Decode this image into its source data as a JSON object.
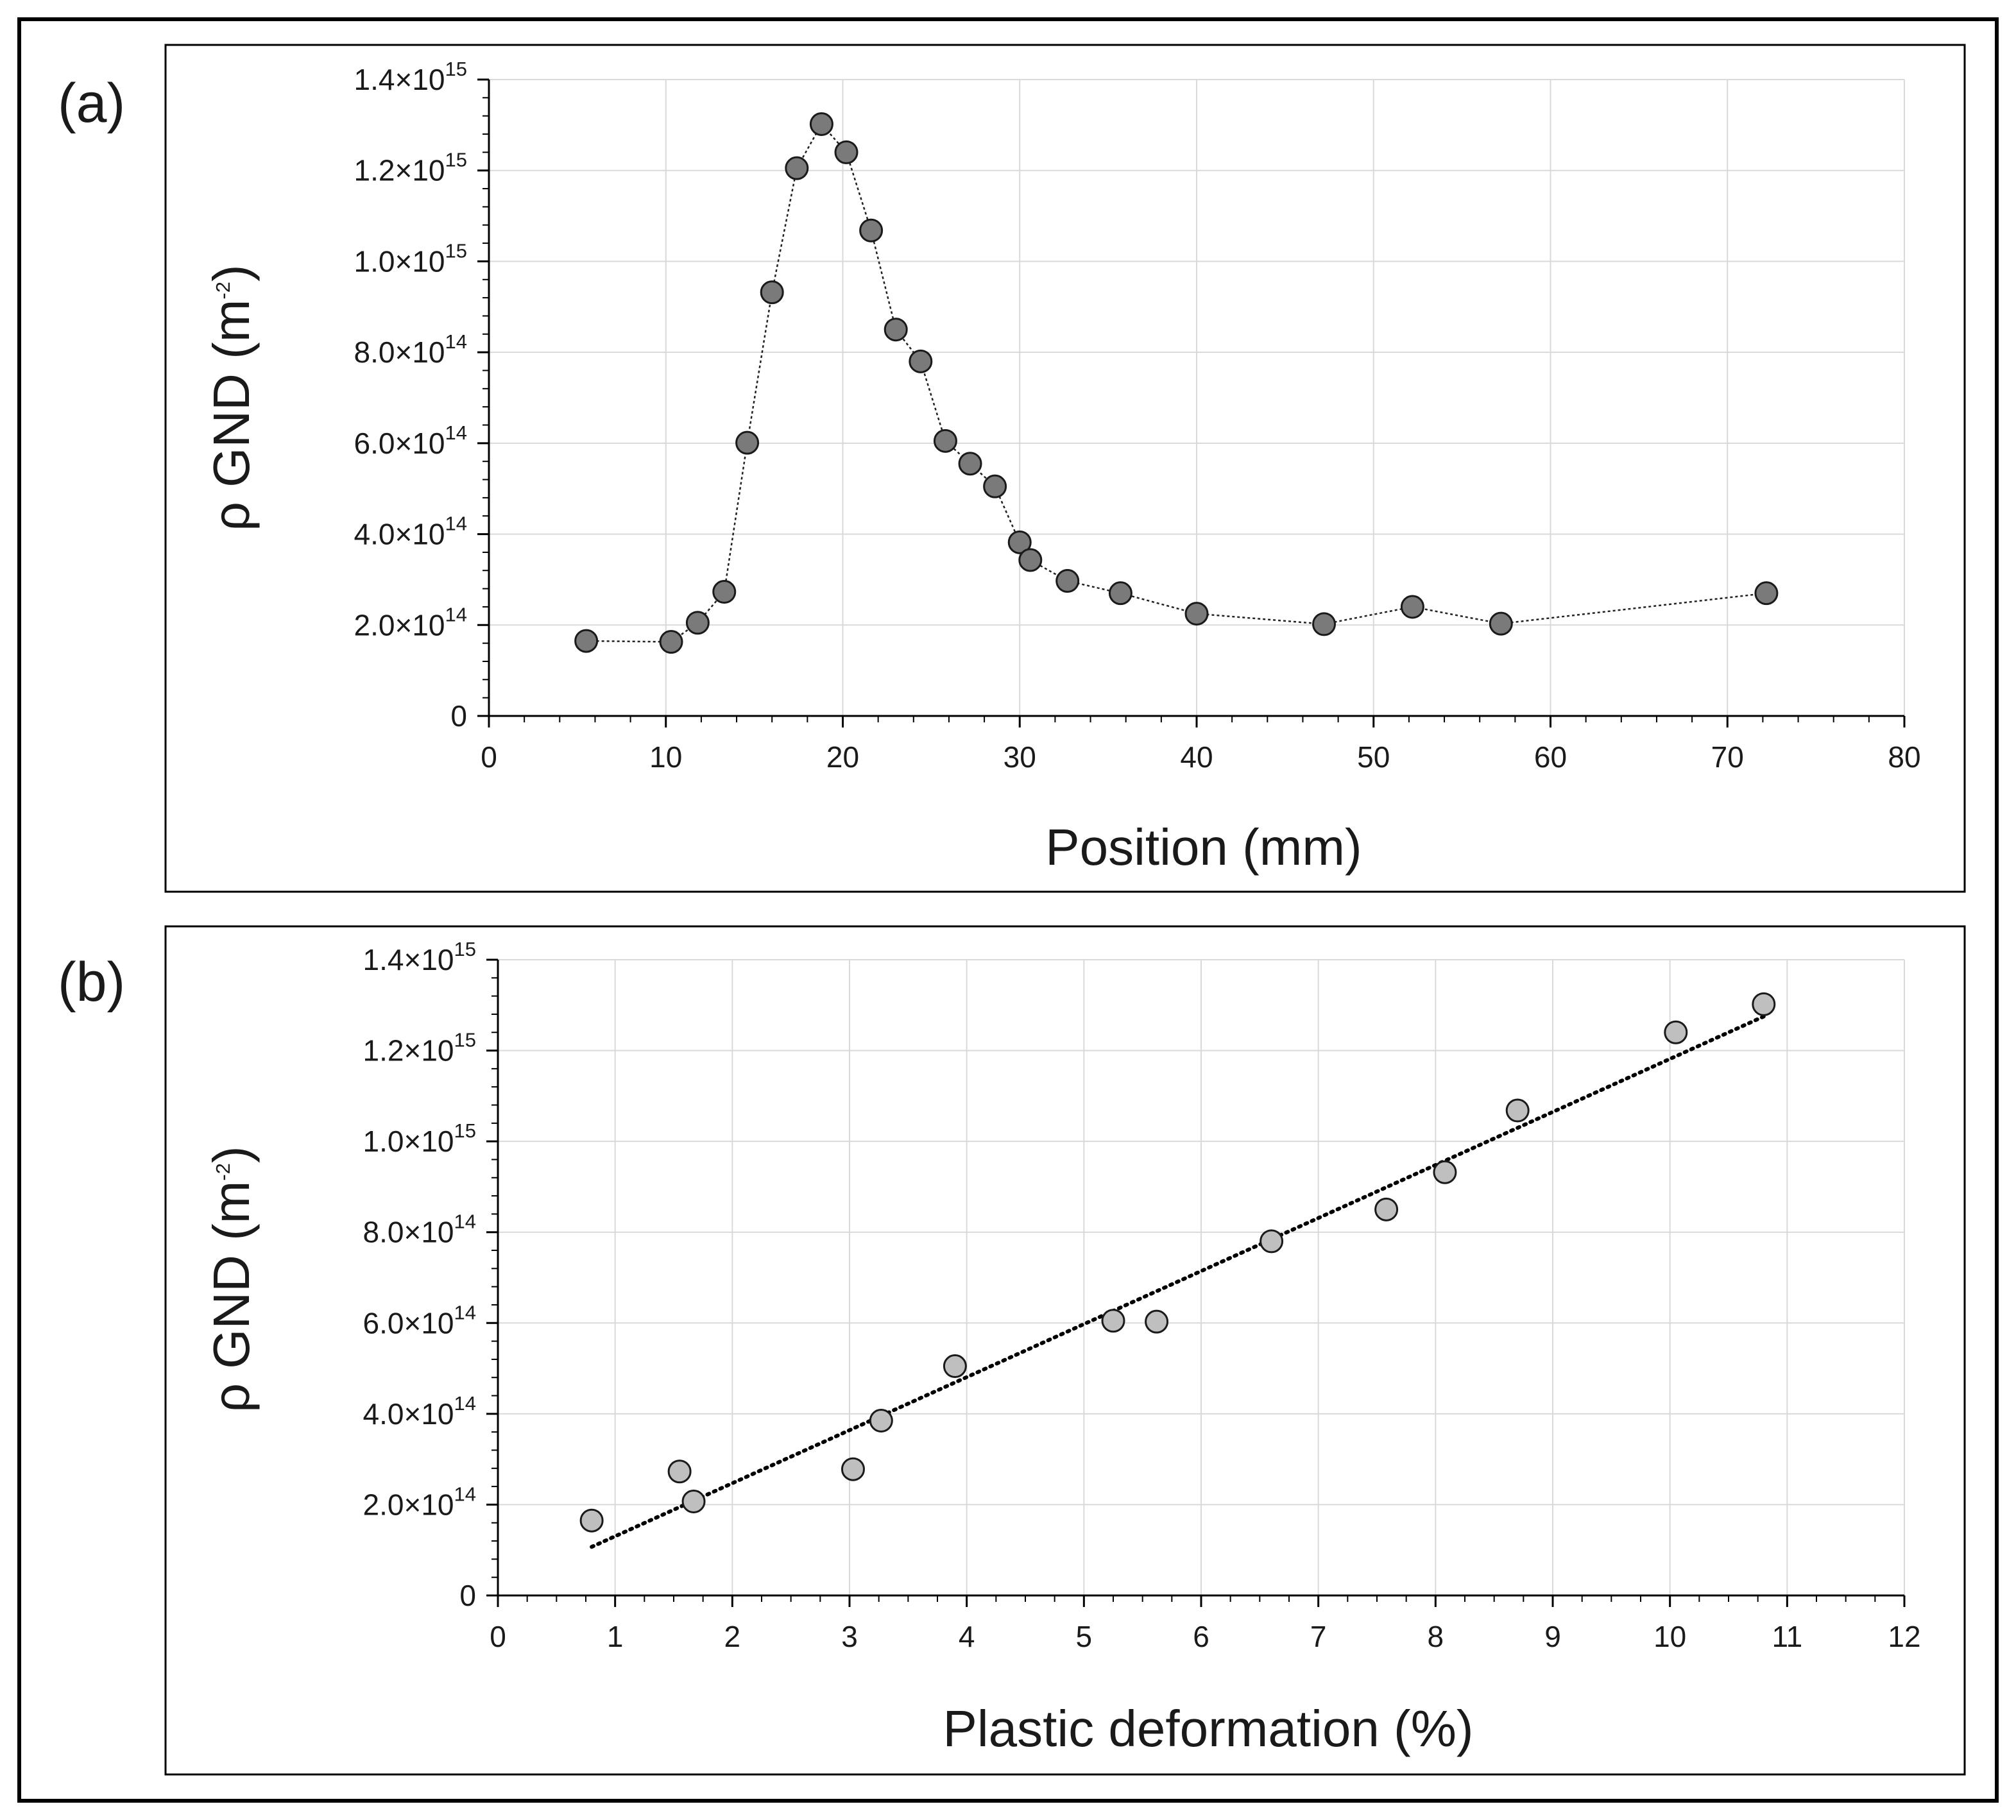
{
  "chart_data": [
    {
      "panel": "(a)",
      "type": "line",
      "xlabel": "Position (mm)",
      "ylabel": {
        "base": "ρ GND (m",
        "exp": "-2",
        "tail": ")"
      },
      "xlim": [
        0,
        80
      ],
      "ylim": [
        0,
        1400000000000000.0
      ],
      "x_ticks": [
        "0",
        "10",
        "20",
        "30",
        "40",
        "50",
        "60",
        "70",
        "80"
      ],
      "y_ticks": [
        {
          "value": 0,
          "mant": "0",
          "exp": ""
        },
        {
          "value": 200000000000000.0,
          "mant": "2.0×10",
          "exp": "14"
        },
        {
          "value": 400000000000000.0,
          "mant": "4.0×10",
          "exp": "14"
        },
        {
          "value": 600000000000000.0,
          "mant": "6.0×10",
          "exp": "14"
        },
        {
          "value": 800000000000000.0,
          "mant": "8.0×10",
          "exp": "14"
        },
        {
          "value": 1000000000000000.0,
          "mant": "1.0×10",
          "exp": "15"
        },
        {
          "value": 1200000000000000.0,
          "mant": "1.2×10",
          "exp": "15"
        },
        {
          "value": 1400000000000000.0,
          "mant": "1.4×10",
          "exp": "15"
        }
      ],
      "grid": true,
      "series": [
        {
          "name": "ρ GND",
          "marker": "circle",
          "line": "dotted",
          "marker_color": "#7a7a7a",
          "x": [
            5.5,
            10.3,
            11.8,
            13.3,
            14.6,
            16.0,
            17.4,
            18.8,
            20.2,
            21.6,
            23.0,
            24.4,
            25.8,
            27.2,
            28.6,
            30.0,
            30.6,
            32.7,
            35.7,
            40.0,
            47.2,
            52.2,
            57.2,
            72.2
          ],
          "y": [
            165000000000000.0,
            163000000000000.0,
            205000000000000.0,
            273000000000000.0,
            601000000000000.0,
            932000000000000.0,
            1205000000000000.0,
            1302000000000000.0,
            1240000000000000.0,
            1068000000000000.0,
            850000000000000.0,
            780000000000000.0,
            605000000000000.0,
            555000000000000.0,
            505000000000000.0,
            382000000000000.0,
            343000000000000.0,
            297000000000000.0,
            270000000000000.0,
            225000000000000.0,
            202000000000000.0,
            240000000000000.0,
            203000000000000.0,
            270000000000000.0
          ]
        }
      ]
    },
    {
      "panel": "(b)",
      "type": "scatter",
      "xlabel": "Plastic deformation (%)",
      "ylabel": {
        "base": "ρ GND (m",
        "exp": "-2",
        "tail": ")"
      },
      "xlim": [
        0,
        12
      ],
      "ylim": [
        0,
        1400000000000000.0
      ],
      "x_ticks": [
        "0",
        "1",
        "2",
        "3",
        "4",
        "5",
        "6",
        "7",
        "8",
        "9",
        "10",
        "11",
        "12"
      ],
      "y_ticks": [
        {
          "value": 0,
          "mant": "0",
          "exp": ""
        },
        {
          "value": 200000000000000.0,
          "mant": "2.0×10",
          "exp": "14"
        },
        {
          "value": 400000000000000.0,
          "mant": "4.0×10",
          "exp": "14"
        },
        {
          "value": 600000000000000.0,
          "mant": "6.0×10",
          "exp": "14"
        },
        {
          "value": 800000000000000.0,
          "mant": "8.0×10",
          "exp": "14"
        },
        {
          "value": 1000000000000000.0,
          "mant": "1.0×10",
          "exp": "15"
        },
        {
          "value": 1200000000000000.0,
          "mant": "1.2×10",
          "exp": "15"
        },
        {
          "value": 1400000000000000.0,
          "mant": "1.4×10",
          "exp": "15"
        }
      ],
      "grid": true,
      "series": [
        {
          "name": "ρ GND",
          "marker": "circle",
          "marker_color": "#bfbfbf",
          "x": [
            0.8,
            1.55,
            1.67,
            3.03,
            3.27,
            3.9,
            5.25,
            5.62,
            6.6,
            7.58,
            8.08,
            8.7,
            10.05,
            10.8
          ],
          "y": [
            165000000000000.0,
            273000000000000.0,
            207000000000000.0,
            278000000000000.0,
            385000000000000.0,
            505000000000000.0,
            605000000000000.0,
            603000000000000.0,
            780000000000000.0,
            850000000000000.0,
            932000000000000.0,
            1068000000000000.0,
            1240000000000000.0,
            1302000000000000.0
          ]
        }
      ],
      "trendline": {
        "style": "dotted",
        "x": [
          0.8,
          10.8
        ],
        "y": [
          107000000000000.0,
          1275000000000000.0
        ]
      }
    }
  ]
}
